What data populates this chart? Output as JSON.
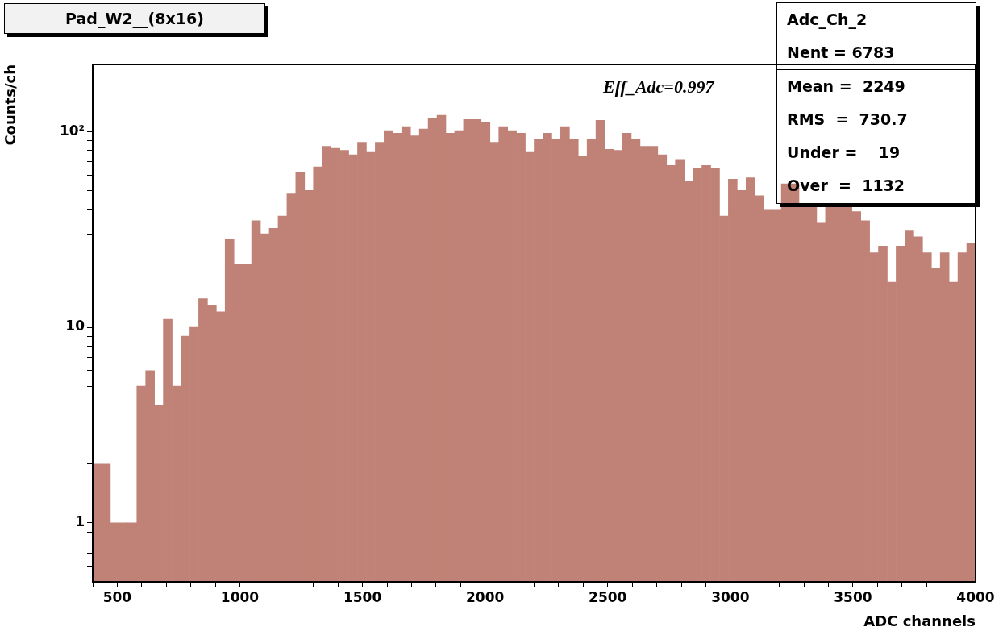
{
  "chart_data": {
    "type": "histogram",
    "title": "Pad_W2__(8x16)",
    "xlabel": "ADC channels",
    "ylabel": "Counts/ch",
    "color": "#c08276",
    "log": true,
    "annotations": [
      "Eff_Adc=0.997",
      "Adc_Ch_2",
      "Nent = 6783",
      "Mean =  2249",
      "RMS  =  730.7",
      "Under =    19",
      "Over  =  1132"
    ],
    "bins": [
      400,
      436,
      472,
      508,
      544,
      580,
      616,
      652,
      688,
      724,
      760,
      796,
      832,
      868,
      904,
      940,
      976,
      1012,
      1048,
      1084,
      1120,
      1156,
      1192,
      1228,
      1264,
      1300,
      1336,
      1372,
      1408,
      1444,
      1480,
      1516,
      1552,
      1588,
      1624,
      1660,
      1696,
      1732,
      1768,
      1804,
      1840,
      1876,
      1912,
      1948,
      1984,
      2020,
      2056,
      2092,
      2128,
      2164,
      2200,
      2236,
      2272,
      2308,
      2344,
      2380,
      2416,
      2452,
      2488,
      2524,
      2560,
      2596,
      2632,
      2668,
      2704,
      2740,
      2776,
      2812,
      2848,
      2884,
      2920,
      2956,
      2992,
      3028,
      3064,
      3100,
      3136,
      3172,
      3208,
      3244,
      3280,
      3316,
      3352,
      3388,
      3424,
      3460,
      3496,
      3532,
      3568,
      3604,
      3640,
      3676,
      3712,
      3748,
      3784,
      3820,
      3856,
      3892,
      3928,
      3964,
      4000
    ],
    "values": [
      2,
      2,
      1,
      1,
      1,
      5,
      6,
      4,
      11,
      5,
      9,
      10,
      14,
      13,
      12,
      28,
      21,
      21,
      35,
      30,
      32,
      37,
      48,
      62,
      50,
      66,
      84,
      82,
      80,
      76,
      88,
      79,
      88,
      101,
      98,
      106,
      95,
      103,
      117,
      121,
      98,
      101,
      115,
      115,
      111,
      88,
      106,
      101,
      98,
      79,
      91,
      98,
      91,
      106,
      91,
      75,
      91,
      114,
      81,
      80,
      98,
      91,
      84,
      84,
      76,
      67,
      72,
      56,
      65,
      67,
      65,
      37,
      57,
      50,
      58,
      47,
      40,
      40,
      54,
      54,
      41,
      41,
      34,
      41,
      41,
      41,
      39,
      35,
      24,
      26,
      17,
      26,
      31,
      29,
      24,
      20,
      24,
      17,
      24,
      27
    ],
    "xlim": [
      400,
      4000
    ],
    "xticks": [
      {
        "value": 400,
        "label": null
      },
      500,
      {
        "value": 600,
        "label": null
      },
      {
        "value": 700,
        "label": null
      },
      {
        "value": 800,
        "label": null
      },
      {
        "value": 900,
        "label": null
      },
      1000,
      {
        "value": 1100,
        "label": null
      },
      {
        "value": 1200,
        "label": null
      },
      {
        "value": 1300,
        "label": null
      },
      {
        "value": 1400,
        "label": null
      },
      1500,
      {
        "value": 1600,
        "label": null
      },
      {
        "value": 1700,
        "label": null
      },
      {
        "value": 1800,
        "label": null
      },
      {
        "value": 1900,
        "label": null
      },
      2000,
      {
        "value": 2100,
        "label": null
      },
      {
        "value": 2200,
        "label": null
      },
      {
        "value": 2300,
        "label": null
      },
      {
        "value": 2400,
        "label": null
      },
      2500,
      {
        "value": 2600,
        "label": null
      },
      {
        "value": 2700,
        "label": null
      },
      {
        "value": 2800,
        "label": null
      },
      {
        "value": 2900,
        "label": null
      },
      3000,
      {
        "value": 3100,
        "label": null
      },
      {
        "value": 3200,
        "label": null
      },
      {
        "value": 3300,
        "label": null
      },
      {
        "value": 3400,
        "label": null
      },
      3500,
      {
        "value": 3600,
        "label": null
      },
      {
        "value": 3700,
        "label": null
      },
      {
        "value": 3800,
        "label": null
      },
      {
        "value": 3900,
        "label": null
      },
      4000
    ],
    "ylim": [
      0.5,
      220
    ],
    "yticks": [
      {
        "value": 0.6,
        "label": null
      },
      {
        "value": 0.7,
        "label": null
      },
      {
        "value": 0.8,
        "label": null
      },
      {
        "value": 0.9,
        "label": null
      },
      1,
      {
        "value": 2,
        "label": null
      },
      {
        "value": 3,
        "label": null
      },
      {
        "value": 4,
        "label": null
      },
      {
        "value": 5,
        "label": null
      },
      {
        "value": 6,
        "label": null
      },
      {
        "value": 7,
        "label": null
      },
      {
        "value": 8,
        "label": null
      },
      {
        "value": 9,
        "label": null
      },
      10,
      {
        "value": 20,
        "label": null
      },
      {
        "value": 30,
        "label": null
      },
      {
        "value": 40,
        "label": null
      },
      {
        "value": 50,
        "label": null
      },
      {
        "value": 60,
        "label": null
      },
      {
        "value": 70,
        "label": null
      },
      {
        "value": 80,
        "label": null
      },
      {
        "value": 90,
        "label": null
      },
      {
        "value": 100,
        "label": "10²"
      },
      {
        "value": 200,
        "label": null
      }
    ]
  }
}
